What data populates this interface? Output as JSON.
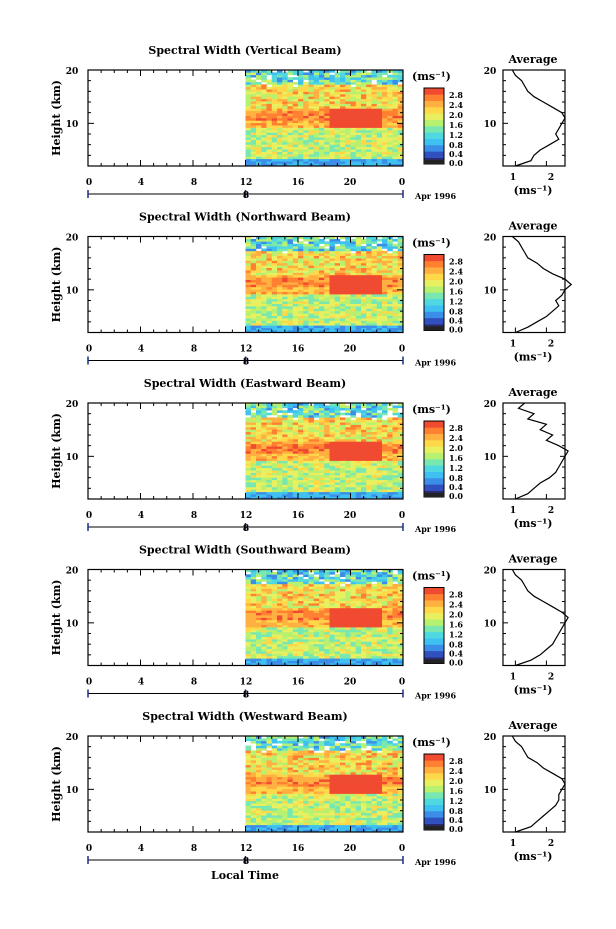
{
  "chart_data": [
    {
      "type": "heatmap",
      "title": "Spectral Width (Vertical Beam)",
      "ylabel": "Height (km)",
      "yticks": [
        "10",
        "20"
      ],
      "xticks": [
        "0",
        "4",
        "8",
        "12",
        "16",
        "20",
        "0"
      ],
      "date_label": "8",
      "date_extra": "Apr 1996",
      "colorbar": {
        "unit": "(ms⁻¹)",
        "ticks": [
          "2.8",
          "2.4",
          "2.0",
          "1.6",
          "1.2",
          "0.8",
          "0.4",
          "0.0"
        ]
      },
      "average": {
        "title": "Average",
        "unit": "(ms⁻¹)",
        "xticks": [
          "1",
          "2"
        ],
        "yticks": [
          "10",
          "20"
        ]
      }
    },
    {
      "type": "heatmap",
      "title": "Spectral Width (Northward Beam)",
      "ylabel": "Height (km)",
      "yticks": [
        "10",
        "20"
      ],
      "xticks": [
        "0",
        "4",
        "8",
        "12",
        "16",
        "20",
        "0"
      ],
      "date_label": "8",
      "date_extra": "Apr 1996",
      "colorbar": {
        "unit": "(ms⁻¹)",
        "ticks": [
          "2.8",
          "2.4",
          "2.0",
          "1.6",
          "1.2",
          "0.8",
          "0.4",
          "0.0"
        ]
      },
      "average": {
        "title": "Average",
        "unit": "(ms⁻¹)",
        "xticks": [
          "1",
          "2"
        ],
        "yticks": [
          "10",
          "20"
        ]
      }
    },
    {
      "type": "heatmap",
      "title": "Spectral Width (Eastward Beam)",
      "ylabel": "Height (km)",
      "yticks": [
        "10",
        "20"
      ],
      "xticks": [
        "0",
        "4",
        "8",
        "12",
        "16",
        "20",
        "0"
      ],
      "date_label": "8",
      "date_extra": "Apr 1996",
      "colorbar": {
        "unit": "(ms⁻¹)",
        "ticks": [
          "2.8",
          "2.4",
          "2.0",
          "1.6",
          "1.2",
          "0.8",
          "0.4",
          "0.0"
        ]
      },
      "average": {
        "title": "Average",
        "unit": "(ms⁻¹)",
        "xticks": [
          "1",
          "2"
        ],
        "yticks": [
          "10",
          "20"
        ]
      }
    },
    {
      "type": "heatmap",
      "title": "Spectral Width (Southward Beam)",
      "ylabel": "Height (km)",
      "yticks": [
        "10",
        "20"
      ],
      "xticks": [
        "0",
        "4",
        "8",
        "12",
        "16",
        "20",
        "0"
      ],
      "date_label": "8",
      "date_extra": "Apr 1996",
      "colorbar": {
        "unit": "(ms⁻¹)",
        "ticks": [
          "2.8",
          "2.4",
          "2.0",
          "1.6",
          "1.2",
          "0.8",
          "0.4",
          "0.0"
        ]
      },
      "average": {
        "title": "Average",
        "unit": "(ms⁻¹)",
        "xticks": [
          "1",
          "2"
        ],
        "yticks": [
          "10",
          "20"
        ]
      }
    },
    {
      "type": "heatmap",
      "title": "Spectral Width (Westward Beam)",
      "ylabel": "Height (km)",
      "yticks": [
        "10",
        "20"
      ],
      "xticks": [
        "0",
        "4",
        "8",
        "12",
        "16",
        "20",
        "0"
      ],
      "date_label": "8",
      "date_extra": "Apr 1996",
      "colorbar": {
        "unit": "(ms⁻¹)",
        "ticks": [
          "2.8",
          "2.4",
          "2.0",
          "1.6",
          "1.2",
          "0.8",
          "0.4",
          "0.0"
        ]
      },
      "average": {
        "title": "Average",
        "unit": "(ms⁻¹)",
        "xticks": [
          "1",
          "2"
        ],
        "yticks": [
          "10",
          "20"
        ]
      }
    }
  ],
  "xlabel": "Local Time",
  "ranges": {
    "time_hours": [
      0,
      24
    ],
    "data_start_hour": 12,
    "height_km": [
      2,
      20
    ],
    "width_ms": [
      0,
      3.0
    ],
    "avg_x": [
      0.6,
      2.6
    ]
  },
  "colors": {
    "scale": [
      "#2a2a6a",
      "#3050c0",
      "#3a8ee8",
      "#3ec0f0",
      "#50d8e0",
      "#78e8b0",
      "#b8f070",
      "#e8f060",
      "#ffd84a",
      "#ffb040",
      "#ff8030",
      "#f04a30"
    ],
    "avg_line": "#000000"
  },
  "average_profiles": [
    {
      "height": [
        2,
        3,
        4,
        5,
        6,
        7,
        8,
        9,
        10,
        11,
        12,
        13,
        14,
        15,
        16,
        17,
        18,
        19,
        20
      ],
      "width": [
        1.0,
        1.5,
        1.6,
        1.8,
        2.1,
        2.4,
        2.3,
        2.4,
        2.5,
        2.6,
        2.5,
        2.2,
        1.9,
        1.6,
        1.4,
        1.3,
        1.2,
        1.0,
        0.9
      ]
    },
    {
      "height": [
        2,
        3,
        4,
        5,
        6,
        7,
        8,
        9,
        10,
        11,
        12,
        13,
        14,
        15,
        16,
        17,
        18,
        19,
        20
      ],
      "width": [
        1.0,
        1.4,
        1.7,
        2.0,
        2.2,
        2.4,
        2.3,
        2.5,
        2.6,
        2.8,
        2.6,
        2.2,
        1.9,
        1.7,
        1.4,
        1.3,
        1.2,
        1.1,
        0.9
      ]
    },
    {
      "height": [
        2,
        3,
        4,
        5,
        6,
        7,
        8,
        9,
        10,
        11,
        12,
        13,
        14,
        15,
        16,
        17,
        18,
        19,
        20
      ],
      "width": [
        1.0,
        1.4,
        1.6,
        1.8,
        2.1,
        2.3,
        2.4,
        2.5,
        2.6,
        2.7,
        2.4,
        2.0,
        2.2,
        1.8,
        2.0,
        1.4,
        1.6,
        1.1,
        1.3
      ]
    },
    {
      "height": [
        2,
        3,
        4,
        5,
        6,
        7,
        8,
        9,
        10,
        11,
        12,
        13,
        14,
        15,
        16,
        17,
        18,
        19,
        20
      ],
      "width": [
        1.0,
        1.5,
        1.8,
        2.0,
        2.2,
        2.3,
        2.4,
        2.5,
        2.6,
        2.7,
        2.5,
        2.2,
        1.9,
        1.6,
        1.4,
        1.3,
        1.2,
        1.0,
        0.9
      ]
    },
    {
      "height": [
        2,
        3,
        4,
        5,
        6,
        7,
        8,
        9,
        10,
        11,
        12,
        13,
        14,
        15,
        16,
        17,
        18,
        19,
        20
      ],
      "width": [
        1.0,
        1.5,
        1.7,
        1.9,
        2.1,
        2.3,
        2.4,
        2.4,
        2.5,
        2.6,
        2.5,
        2.2,
        1.9,
        1.7,
        1.4,
        1.3,
        1.2,
        1.0,
        0.9
      ]
    }
  ]
}
